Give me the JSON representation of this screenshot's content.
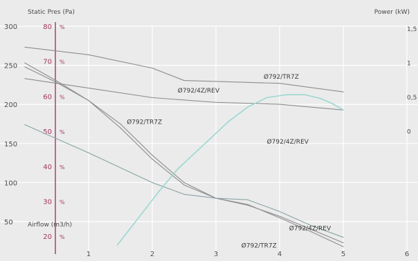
{
  "chart_data": {
    "type": "line",
    "title": "",
    "xlabel": "Airflow (m3/h)",
    "ylabel_left": "Static Pres (Pa)",
    "ylabel_right": "Power (kW)",
    "xlim": [
      0,
      6
    ],
    "ylim_left": [
      20,
      300
    ],
    "ylim_right": [
      -0.8,
      1.5
    ],
    "x_ticks": [
      "1",
      "2",
      "3",
      "4",
      "5",
      "6"
    ],
    "y_ticks_left": [
      "300",
      "250",
      "200",
      "150",
      "100",
      "50"
    ],
    "y_ticks_efficiency": [
      "80",
      "70",
      "60",
      "50",
      "40",
      "30",
      "20"
    ],
    "efficiency_unit": "%",
    "y_ticks_right": [
      "1,5",
      "1",
      "0,5",
      "0"
    ],
    "grid": true,
    "colors": {
      "background": "#ebebec",
      "grid": "#ffffff",
      "axis_text": "#4a4a4a",
      "efficiency_axis": "#a3355c",
      "pressure_line": "#8c8c8c",
      "efficiency_line": "#8aa3a3",
      "power_line": "#9ad8cf"
    },
    "series": [
      {
        "name": "Ø792/4Z/REV",
        "kind": "static-pressure",
        "x": [
          0.0,
          0.5,
          1.0,
          1.5,
          2.0,
          2.5,
          3.0,
          3.5,
          4.0,
          4.5,
          5.0
        ],
        "y": [
          253,
          230,
          205,
          175,
          135,
          100,
          80,
          72,
          55,
          37,
          18
        ]
      },
      {
        "name": "Ø792/TR7Z",
        "kind": "static-pressure",
        "x": [
          0.0,
          0.5,
          1.0,
          1.5,
          2.0,
          2.5,
          3.0,
          3.5,
          4.0,
          4.5,
          5.0
        ],
        "y": [
          248,
          228,
          205,
          170,
          130,
          97,
          80,
          71,
          57,
          40,
          23
        ]
      },
      {
        "name": "",
        "kind": "efficiency",
        "x": [
          0.0,
          0.5,
          1.0,
          1.5,
          2.0,
          2.5,
          3.0,
          3.5,
          4.0,
          4.5,
          5.0
        ],
        "y": [
          174,
          156,
          138,
          119,
          100,
          85,
          80,
          78,
          63,
          45,
          30
        ]
      },
      {
        "name": "Ø792/4Z/REV",
        "kind": "power",
        "x": [
          0.0,
          1.0,
          2.0,
          2.5,
          3.0,
          4.0,
          5.0
        ],
        "y": [
          1.28,
          1.2,
          1.06,
          0.93,
          0.92,
          0.9,
          0.81
        ]
      },
      {
        "name": "Ø792/TR7Z",
        "kind": "power",
        "x": [
          0.0,
          1.0,
          2.0,
          3.0,
          4.0,
          5.0
        ],
        "y": [
          0.95,
          0.85,
          0.75,
          0.7,
          0.68,
          0.62
        ]
      },
      {
        "name": "Ø792/TR7Z",
        "kind": "power-rising",
        "x": [
          1.45,
          1.8,
          2.1,
          2.4,
          2.8,
          3.2,
          3.5,
          3.8,
          4.1,
          4.4,
          4.65,
          4.85,
          5.0
        ],
        "y": [
          -0.8,
          -0.5,
          -0.24,
          0.0,
          0.25,
          0.5,
          0.65,
          0.75,
          0.78,
          0.78,
          0.74,
          0.68,
          0.62
        ]
      }
    ],
    "annotations": [
      {
        "text": "Ø792/4Z/REV",
        "x": 2.4,
        "y": 215
      },
      {
        "text": "Ø792/TR7Z",
        "x": 3.75,
        "y": 233
      },
      {
        "text": "Ø792/TR7Z",
        "x": 1.6,
        "y": 175
      },
      {
        "text": "Ø792/4Z/REV",
        "x": 3.8,
        "y": 150
      },
      {
        "text": "Ø792/4Z/REV",
        "x": 4.15,
        "y": 39
      },
      {
        "text": "Ø792/TR7Z",
        "x": 3.4,
        "y": 17
      }
    ]
  }
}
